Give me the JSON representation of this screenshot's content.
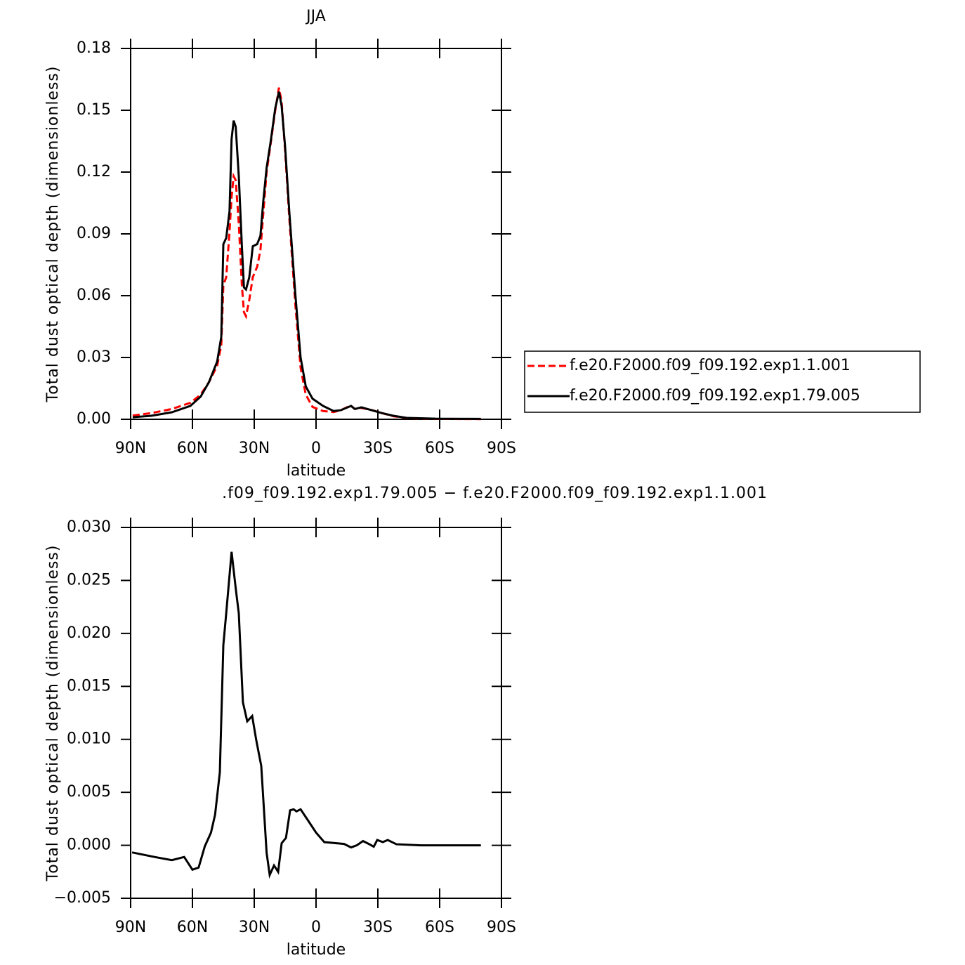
{
  "chart_data": [
    {
      "type": "line",
      "title": "JJA",
      "x_label": "latitude",
      "y_label": "Total dust optical depth (dimensionless)",
      "xlim": [
        90,
        -90
      ],
      "xticks": [
        {
          "value": 90,
          "label": "90N"
        },
        {
          "value": 60,
          "label": "60N"
        },
        {
          "value": 30,
          "label": "30N"
        },
        0,
        {
          "value": -30,
          "label": "30S"
        },
        {
          "value": -60,
          "label": "60S"
        },
        {
          "value": -90,
          "label": "90S"
        }
      ],
      "ylim": [
        0,
        0.18
      ],
      "yticks": [
        {
          "value": 0,
          "label": "0.00"
        },
        0.03,
        0.06,
        0.09,
        0.12,
        0.15,
        0.18
      ],
      "legend": "right",
      "x": [
        89,
        80,
        70,
        61,
        56,
        52,
        48,
        46,
        45,
        43.6,
        42,
        41,
        40,
        39,
        37.5,
        36,
        35,
        34,
        32.4,
        30.7,
        28.6,
        27,
        25.6,
        24,
        22,
        19.8,
        18,
        16.7,
        15,
        13,
        10,
        7.5,
        5,
        1.7,
        -3.4,
        -8.5,
        -12,
        -15.3,
        -17,
        -18.8,
        -22,
        -27,
        -32,
        -37.5,
        -44,
        -58,
        -80
      ],
      "series": [
        {
          "name": "f.e20.F2000.f09_f09.192.exp1.1.001",
          "color": "#ff0000",
          "dash": true,
          "values": [
            0.0018,
            0.003,
            0.005,
            0.008,
            0.012,
            0.018,
            0.026,
            0.036,
            0.065,
            0.069,
            0.091,
            0.108,
            0.118,
            0.116,
            0.095,
            0.065,
            0.052,
            0.05,
            0.058,
            0.069,
            0.074,
            0.082,
            0.1,
            0.12,
            0.134,
            0.15,
            0.161,
            0.154,
            0.13,
            0.098,
            0.055,
            0.025,
            0.012,
            0.006,
            0.004,
            0.0035,
            0.0044,
            0.006,
            0.0065,
            0.005,
            0.0055,
            0.0045,
            0.003,
            0.0015,
            0.0006,
            0.0002,
            0.0001
          ]
        },
        {
          "name": "f.e20.F2000.f09_f09.192.exp1.79.005",
          "color": "#000000",
          "dash": false,
          "values": [
            0.001,
            0.0017,
            0.0034,
            0.0065,
            0.011,
            0.018,
            0.028,
            0.04,
            0.085,
            0.088,
            0.101,
            0.136,
            0.145,
            0.142,
            0.118,
            0.084,
            0.064,
            0.063,
            0.069,
            0.084,
            0.085,
            0.089,
            0.106,
            0.122,
            0.135,
            0.151,
            0.159,
            0.152,
            0.132,
            0.101,
            0.06,
            0.03,
            0.016,
            0.01,
            0.0065,
            0.004,
            0.0044,
            0.0058,
            0.0065,
            0.005,
            0.0058,
            0.0044,
            0.003,
            0.0017,
            0.0007,
            0.0003,
            0.0002
          ]
        }
      ]
    },
    {
      "type": "line",
      "title": ".f09_f09.192.exp1.79.005 − f.e20.F2000.f09_f09.192.exp1.1.001",
      "x_label": "latitude",
      "y_label": "Total dust optical depth (dimensionless)",
      "xlim": [
        90,
        -90
      ],
      "xticks": [
        {
          "value": 90,
          "label": "90N"
        },
        {
          "value": 60,
          "label": "60N"
        },
        {
          "value": 30,
          "label": "30N"
        },
        0,
        {
          "value": -30,
          "label": "30S"
        },
        {
          "value": -60,
          "label": "60S"
        },
        {
          "value": -90,
          "label": "90S"
        }
      ],
      "ylim": [
        -0.005,
        0.03
      ],
      "yticks": [
        {
          "value": -0.005,
          "label": "−0.005"
        },
        {
          "value": 0,
          "label": "0.000"
        },
        0.005,
        {
          "value": 0.01,
          "label": "0.010"
        },
        0.015,
        {
          "value": 0.02,
          "label": "0.020"
        },
        0.025,
        {
          "value": 0.03,
          "label": "0.030"
        }
      ],
      "x": [
        89.3,
        78.4,
        70,
        64,
        60,
        57,
        54,
        51,
        49,
        46.7,
        45,
        43.6,
        41,
        38.9,
        37.5,
        35.5,
        33.4,
        31,
        29,
        26.6,
        24,
        22.5,
        20.4,
        18.4,
        16.7,
        14.6,
        12.6,
        10.9,
        9.5,
        7.5,
        3.4,
        0,
        -4,
        -13.6,
        -17,
        -19.8,
        -22.8,
        -25.6,
        -28,
        -29.7,
        -32.4,
        -34.8,
        -39,
        -51,
        -80
      ],
      "series": [
        {
          "color": "#000000",
          "dash": false,
          "values": [
            -0.00067,
            -0.0011,
            -0.0014,
            -0.0011,
            -0.0023,
            -0.0021,
            -0.0001,
            0.0012,
            0.0029,
            0.0069,
            0.0189,
            0.0219,
            0.0277,
            0.0241,
            0.0219,
            0.0135,
            0.0117,
            0.0122,
            0.0099,
            0.0075,
            -0.0007,
            -0.0028,
            -0.0019,
            -0.0025,
            0.0002,
            0.0007,
            0.0033,
            0.0034,
            0.0032,
            0.0034,
            0.0022,
            0.0012,
            0.0003,
            0.00013,
            -0.0002,
            0,
            0.0004,
            0.00013,
            -0.00013,
            0.0005,
            0.0003,
            0.0005,
            0.0001,
            0,
            0
          ]
        }
      ]
    }
  ]
}
